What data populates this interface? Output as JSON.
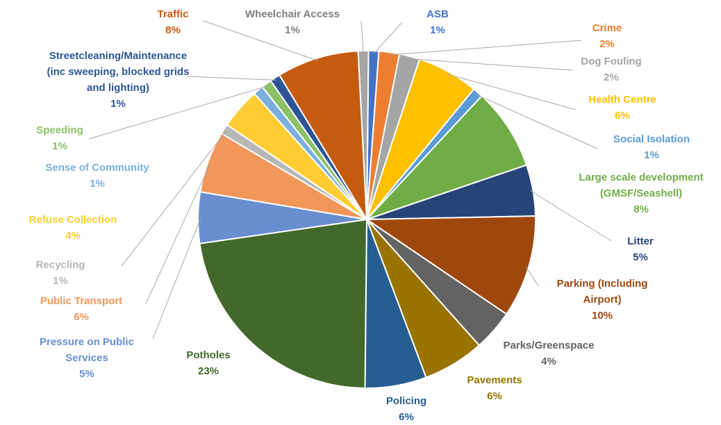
{
  "chart_data": {
    "type": "pie",
    "title": "",
    "slices": [
      {
        "label": "ASB",
        "value": 1,
        "pct_label": "1%",
        "color": "#4472C4",
        "label_color": "#4472C4"
      },
      {
        "label": "Crime",
        "value": 2,
        "pct_label": "2%",
        "color": "#ED7D31",
        "label_color": "#ED7D31"
      },
      {
        "label": "Dog Fouling",
        "value": 2,
        "pct_label": "2%",
        "color": "#A5A5A5",
        "label_color": "#A5A5A5"
      },
      {
        "label": "Health Centre",
        "value": 6,
        "pct_label": "6%",
        "color": "#FFC000",
        "label_color": "#FFC000"
      },
      {
        "label": "Social Isolation",
        "value": 1,
        "pct_label": "1%",
        "color": "#5B9BD5",
        "label_color": "#5B9BD5"
      },
      {
        "label": "Large scale development (GMSF/Seashell)",
        "label_lines": [
          "Large scale development",
          "(GMSF/Seashell)"
        ],
        "value": 8,
        "pct_label": "8%",
        "color": "#70AD47",
        "label_color": "#70AD47"
      },
      {
        "label": "Litter",
        "value": 5,
        "pct_label": "5%",
        "color": "#264478",
        "label_color": "#264478"
      },
      {
        "label": "Parking (Including Airport)",
        "label_lines": [
          "Parking (Including",
          "Airport)"
        ],
        "value": 10,
        "pct_label": "10%",
        "color": "#9E480E",
        "label_color": "#9E480E"
      },
      {
        "label": "Parks/Greenspace",
        "value": 4,
        "pct_label": "4%",
        "color": "#636363",
        "label_color": "#636363"
      },
      {
        "label": "Pavements",
        "value": 6,
        "pct_label": "6%",
        "color": "#997300",
        "label_color": "#997300"
      },
      {
        "label": "Policing",
        "value": 6,
        "pct_label": "6%",
        "color": "#255E91",
        "label_color": "#255E91"
      },
      {
        "label": "Potholes",
        "value": 23,
        "pct_label": "23%",
        "color": "#43682B",
        "label_color": "#43682B"
      },
      {
        "label": "Pressure on Public Services",
        "label_lines": [
          "Pressure on Public",
          "Services"
        ],
        "value": 5,
        "pct_label": "5%",
        "color": "#698ED0",
        "label_color": "#698ED0"
      },
      {
        "label": "Public Transport",
        "value": 6,
        "pct_label": "6%",
        "color": "#F1975A",
        "label_color": "#F1975A"
      },
      {
        "label": "Recycling",
        "value": 1,
        "pct_label": "1%",
        "color": "#B7B7B7",
        "label_color": "#B7B7B7"
      },
      {
        "label": "Refuse Collection",
        "value": 4,
        "pct_label": "4%",
        "color": "#FFCD33",
        "label_color": "#FFCD33"
      },
      {
        "label": "Sense of Community",
        "value": 1,
        "pct_label": "1%",
        "color": "#7CAFDD",
        "label_color": "#7CAFDD"
      },
      {
        "label": "Speeding",
        "value": 1,
        "pct_label": "1%",
        "color": "#8CC168",
        "label_color": "#8CC168"
      },
      {
        "label": "Streetcleaning/Maintenance (inc sweeping, blocked grids and lighting)",
        "label_lines": [
          "Streetcleaning/Maintenance",
          "(inc sweeping, blocked grids",
          "and lighting)"
        ],
        "value": 1,
        "pct_label": "1%",
        "color": "#2F5597",
        "label_color": "#2F5597"
      },
      {
        "label": "Traffic",
        "value": 8,
        "pct_label": "8%",
        "color": "#C55A11",
        "label_color": "#C55A11"
      },
      {
        "label": "Wheelchair Access",
        "value": 1,
        "pct_label": "1%",
        "color": "#A5A5A5",
        "label_color": "#7F7F7F"
      }
    ]
  }
}
